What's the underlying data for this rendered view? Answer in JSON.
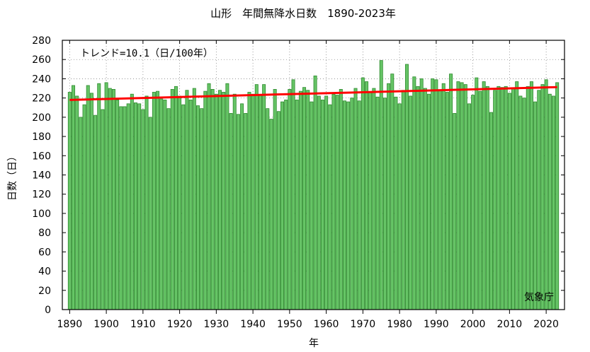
{
  "chart_data": {
    "type": "bar",
    "title": "山形　年間無降水日数　1890-2023年",
    "xlabel": "年",
    "ylabel": "日数（日）",
    "xlim": [
      1888,
      2025
    ],
    "ylim": [
      0,
      280
    ],
    "yticks": [
      0,
      20,
      40,
      60,
      80,
      100,
      120,
      140,
      160,
      180,
      200,
      220,
      240,
      260,
      280
    ],
    "xticks": [
      1890,
      1900,
      1910,
      1920,
      1930,
      1940,
      1950,
      1960,
      1970,
      1980,
      1990,
      2000,
      2010,
      2020
    ],
    "grid": true,
    "bar_color": "#66c466",
    "bar_edge_color": "#2e8b2e",
    "x": [
      1890,
      1891,
      1892,
      1893,
      1894,
      1895,
      1896,
      1897,
      1898,
      1899,
      1900,
      1901,
      1902,
      1903,
      1904,
      1905,
      1906,
      1907,
      1908,
      1909,
      1910,
      1911,
      1912,
      1913,
      1914,
      1915,
      1916,
      1917,
      1918,
      1919,
      1920,
      1921,
      1922,
      1923,
      1924,
      1925,
      1926,
      1927,
      1928,
      1929,
      1930,
      1931,
      1932,
      1933,
      1934,
      1935,
      1936,
      1937,
      1938,
      1939,
      1940,
      1941,
      1942,
      1943,
      1944,
      1945,
      1946,
      1947,
      1948,
      1949,
      1950,
      1951,
      1952,
      1953,
      1954,
      1955,
      1956,
      1957,
      1958,
      1959,
      1960,
      1961,
      1962,
      1963,
      1964,
      1965,
      1966,
      1967,
      1968,
      1969,
      1970,
      1971,
      1972,
      1973,
      1974,
      1975,
      1976,
      1977,
      1978,
      1979,
      1980,
      1981,
      1982,
      1983,
      1984,
      1985,
      1986,
      1987,
      1988,
      1989,
      1990,
      1991,
      1992,
      1993,
      1994,
      1995,
      1996,
      1997,
      1998,
      1999,
      2000,
      2001,
      2002,
      2003,
      2004,
      2005,
      2006,
      2007,
      2008,
      2009,
      2010,
      2011,
      2012,
      2013,
      2014,
      2015,
      2016,
      2017,
      2018,
      2019,
      2020,
      2021,
      2022,
      2023
    ],
    "values": [
      226,
      233,
      222,
      200,
      213,
      233,
      225,
      202,
      235,
      208,
      236,
      230,
      229,
      218,
      211,
      211,
      214,
      224,
      215,
      214,
      208,
      222,
      200,
      226,
      227,
      219,
      218,
      209,
      229,
      232,
      222,
      213,
      228,
      218,
      230,
      212,
      209,
      227,
      235,
      229,
      224,
      228,
      226,
      235,
      204,
      224,
      203,
      214,
      204,
      226,
      224,
      234,
      223,
      234,
      209,
      198,
      229,
      206,
      216,
      218,
      229,
      239,
      218,
      227,
      231,
      228,
      216,
      243,
      222,
      218,
      222,
      213,
      224,
      223,
      229,
      217,
      216,
      220,
      230,
      217,
      241,
      237,
      226,
      230,
      221,
      259,
      220,
      235,
      245,
      221,
      214,
      228,
      255,
      222,
      242,
      232,
      240,
      230,
      224,
      240,
      239,
      228,
      235,
      226,
      245,
      204,
      237,
      236,
      234,
      214,
      223,
      241,
      227,
      237,
      232,
      205,
      228,
      232,
      231,
      232,
      225,
      230,
      237,
      222,
      220,
      232,
      237,
      216,
      228,
      234,
      239,
      224,
      222,
      236
    ],
    "trend": {
      "start": [
        1890,
        218
      ],
      "end": [
        2023,
        231.3
      ],
      "color": "#ff0000"
    },
    "annotation": "トレンド=10.1（日/100年）",
    "source": "気象庁"
  }
}
